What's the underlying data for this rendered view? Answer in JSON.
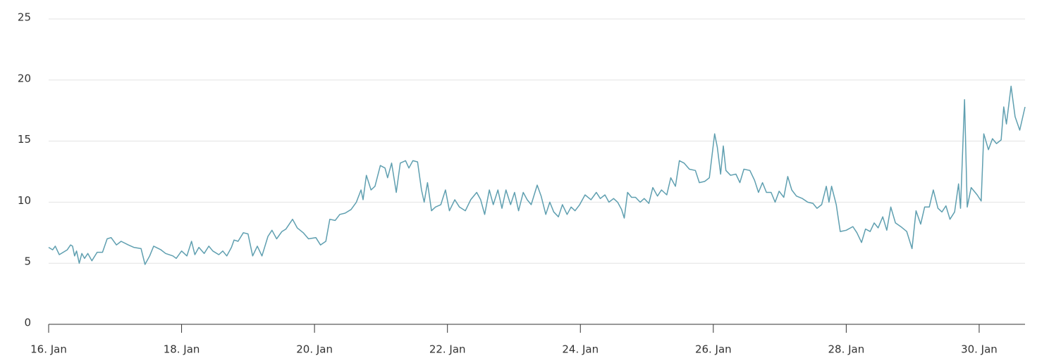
{
  "chart_data": {
    "type": "line",
    "color": "#5f9fb0",
    "grid": true,
    "xlim": [
      16,
      30.69
    ],
    "ylim": [
      0,
      25
    ],
    "xticks": [
      {
        "value": 16,
        "label": "16. Jan"
      },
      {
        "value": 18,
        "label": "18. Jan"
      },
      {
        "value": 20,
        "label": "20. Jan"
      },
      {
        "value": 22,
        "label": "22. Jan"
      },
      {
        "value": 24,
        "label": "24. Jan"
      },
      {
        "value": 26,
        "label": "26. Jan"
      },
      {
        "value": 28,
        "label": "28. Jan"
      },
      {
        "value": 30,
        "label": "30. Jan"
      }
    ],
    "yticks": [
      0,
      5,
      10,
      15,
      20,
      25
    ],
    "x": [
      16.0,
      16.06,
      16.1,
      16.16,
      16.28,
      16.33,
      16.36,
      16.39,
      16.42,
      16.46,
      16.5,
      16.54,
      16.59,
      16.65,
      16.73,
      16.81,
      16.88,
      16.94,
      17.02,
      17.09,
      17.2,
      17.28,
      17.39,
      17.45,
      17.52,
      17.58,
      17.69,
      17.76,
      17.87,
      17.92,
      18.0,
      18.08,
      18.15,
      18.2,
      18.26,
      18.34,
      18.41,
      18.47,
      18.56,
      18.62,
      18.68,
      18.75,
      18.79,
      18.85,
      18.93,
      19.0,
      19.07,
      19.14,
      19.21,
      19.3,
      19.36,
      19.43,
      19.51,
      19.57,
      19.67,
      19.74,
      19.83,
      19.91,
      20.02,
      20.09,
      20.17,
      20.23,
      20.31,
      20.38,
      20.46,
      20.55,
      20.63,
      20.7,
      20.73,
      20.78,
      20.85,
      20.91,
      20.99,
      21.06,
      21.1,
      21.16,
      21.23,
      21.29,
      21.37,
      21.42,
      21.48,
      21.55,
      21.61,
      21.65,
      21.7,
      21.76,
      21.82,
      21.9,
      21.97,
      22.03,
      22.11,
      22.18,
      22.27,
      22.35,
      22.44,
      22.5,
      22.56,
      22.63,
      22.69,
      22.76,
      22.82,
      22.88,
      22.95,
      23.01,
      23.07,
      23.14,
      23.2,
      23.26,
      23.35,
      23.41,
      23.48,
      23.54,
      23.6,
      23.67,
      23.73,
      23.8,
      23.86,
      23.92,
      23.99,
      24.07,
      24.16,
      24.24,
      24.3,
      24.37,
      24.43,
      24.5,
      24.56,
      24.62,
      24.66,
      24.71,
      24.77,
      24.83,
      24.9,
      24.96,
      25.03,
      25.09,
      25.16,
      25.22,
      25.3,
      25.36,
      25.43,
      25.49,
      25.56,
      25.64,
      25.73,
      25.79,
      25.87,
      25.94,
      26.02,
      26.06,
      26.11,
      26.15,
      26.19,
      26.26,
      26.34,
      26.4,
      26.46,
      26.55,
      26.62,
      26.68,
      26.74,
      26.8,
      26.87,
      26.93,
      26.99,
      27.06,
      27.12,
      27.18,
      27.25,
      27.34,
      27.42,
      27.5,
      27.56,
      27.63,
      27.7,
      27.74,
      27.78,
      27.85,
      27.91,
      28.0,
      28.1,
      28.16,
      28.23,
      28.29,
      28.36,
      28.42,
      28.48,
      28.55,
      28.61,
      28.67,
      28.74,
      28.82,
      28.91,
      28.99,
      29.05,
      29.12,
      29.18,
      29.25,
      29.31,
      29.38,
      29.44,
      29.5,
      29.56,
      29.63,
      29.69,
      29.72,
      29.78,
      29.82,
      29.88,
      29.97,
      30.03,
      30.07,
      30.14,
      30.2,
      30.26,
      30.33,
      30.37,
      30.41,
      30.48,
      30.54,
      30.61,
      30.69
    ],
    "series": [
      {
        "values": [
          6.3,
          6.1,
          6.4,
          5.7,
          6.1,
          6.5,
          6.4,
          5.6,
          6.0,
          5.0,
          5.8,
          5.4,
          5.8,
          5.2,
          5.9,
          5.9,
          7.0,
          7.1,
          6.5,
          6.8,
          6.5,
          6.3,
          6.2,
          4.9,
          5.6,
          6.4,
          6.1,
          5.8,
          5.6,
          5.4,
          6.0,
          5.6,
          6.8,
          5.7,
          6.3,
          5.8,
          6.4,
          6.0,
          5.7,
          6.0,
          5.6,
          6.3,
          6.9,
          6.8,
          7.5,
          7.4,
          5.6,
          6.4,
          5.6,
          7.2,
          7.7,
          7.0,
          7.6,
          7.8,
          8.6,
          7.9,
          7.5,
          7.0,
          7.1,
          6.5,
          6.8,
          8.6,
          8.5,
          9.0,
          9.1,
          9.4,
          10.0,
          11.0,
          10.2,
          12.2,
          11.0,
          11.3,
          13.0,
          12.8,
          12.0,
          13.2,
          10.8,
          13.2,
          13.4,
          12.8,
          13.4,
          13.3,
          11.0,
          10.0,
          11.6,
          9.3,
          9.6,
          9.8,
          11.0,
          9.3,
          10.2,
          9.6,
          9.3,
          10.2,
          10.8,
          10.2,
          9.0,
          11.0,
          9.8,
          11.0,
          9.5,
          11.0,
          9.8,
          10.8,
          9.3,
          10.8,
          10.2,
          9.8,
          11.4,
          10.5,
          9.0,
          10.0,
          9.2,
          8.8,
          9.8,
          9.0,
          9.6,
          9.3,
          9.8,
          10.6,
          10.2,
          10.8,
          10.3,
          10.6,
          10.0,
          10.3,
          10.0,
          9.4,
          8.7,
          10.8,
          10.4,
          10.4,
          10.0,
          10.3,
          9.9,
          11.2,
          10.5,
          11.0,
          10.6,
          12.0,
          11.3,
          13.4,
          13.2,
          12.7,
          12.6,
          11.6,
          11.7,
          12.0,
          15.6,
          14.5,
          12.3,
          14.6,
          12.6,
          12.2,
          12.3,
          11.6,
          12.7,
          12.6,
          11.8,
          10.8,
          11.6,
          10.8,
          10.8,
          10.0,
          10.9,
          10.4,
          12.1,
          11.0,
          10.5,
          10.3,
          10.0,
          9.9,
          9.5,
          9.8,
          11.3,
          10.0,
          11.3,
          9.8,
          7.6,
          7.7,
          8.0,
          7.5,
          6.7,
          7.8,
          7.6,
          8.3,
          7.9,
          8.8,
          7.7,
          9.6,
          8.3,
          8.0,
          7.6,
          6.2,
          9.3,
          8.2,
          9.6,
          9.6,
          11.0,
          9.5,
          9.2,
          9.7,
          8.6,
          9.2,
          11.5,
          9.5,
          18.4,
          9.6,
          11.2,
          10.6,
          10.1,
          15.6,
          14.3,
          15.2,
          14.8,
          15.1,
          17.8,
          16.4,
          19.5,
          17.0,
          15.9,
          17.8
        ]
      }
    ]
  }
}
